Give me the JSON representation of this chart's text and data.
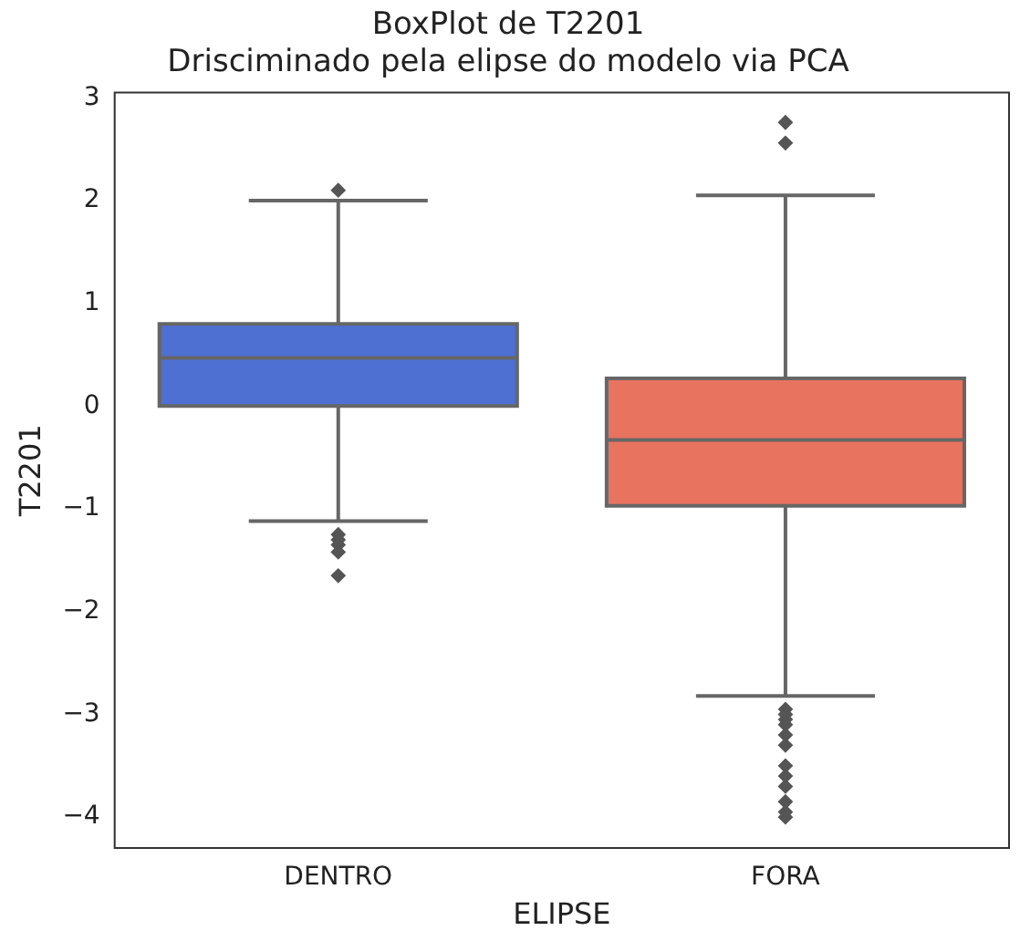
{
  "chart_data": {
    "type": "box",
    "title": "BoxPlot de T2201\nDrisciminado pela elipse do modelo via PCA",
    "xlabel": "ELIPSE",
    "ylabel": "T2201",
    "categories": [
      "DENTRO",
      "FORA"
    ],
    "colors": [
      "#4e70d3",
      "#e8735f"
    ],
    "boxes": [
      {
        "low": -1.12,
        "q1": 0.0,
        "median": 0.47,
        "q3": 0.8,
        "high": 2.0,
        "outliers": [
          2.1,
          -1.25,
          -1.3,
          -1.35,
          -1.42,
          -1.65
        ]
      },
      {
        "low": -2.82,
        "q1": -0.97,
        "median": -0.33,
        "q3": 0.27,
        "high": 2.05,
        "outliers": [
          2.76,
          2.56,
          -2.95,
          -3.0,
          -3.05,
          -3.1,
          -3.2,
          -3.3,
          -3.5,
          -3.6,
          -3.7,
          -3.85,
          -3.95,
          -4.0
        ]
      }
    ],
    "ylim": [
      -4.3,
      3.05
    ],
    "yticks": [
      -4,
      -3,
      -2,
      -1,
      0,
      1,
      2,
      3
    ],
    "grid": false,
    "legend": false
  }
}
